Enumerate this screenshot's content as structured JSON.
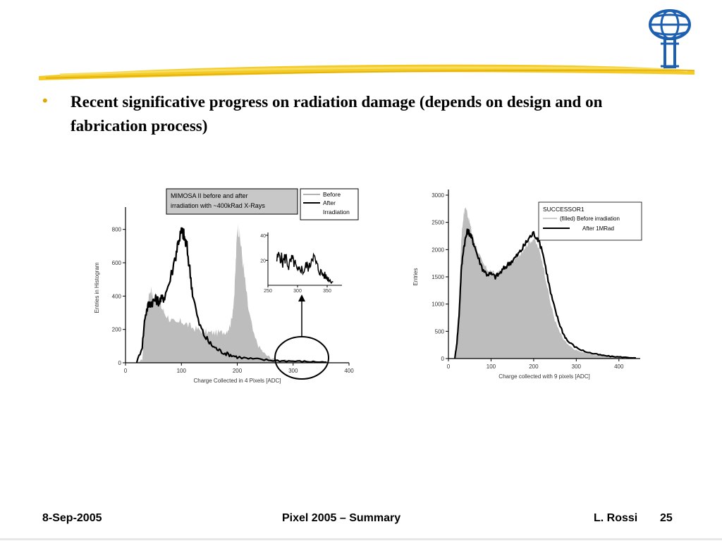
{
  "slide": {
    "bullet": "Recent significative progress on radiation damage (depends on design and on fabrication process)",
    "bullet_color": "#e0a800",
    "accent_color": "#f2c200"
  },
  "footer": {
    "date": "8-Sep-2005",
    "title": "Pixel 2005 – Summary",
    "author": "L. Rossi",
    "page": "25"
  },
  "chart_data": [
    {
      "type": "area",
      "title": "MIMOSA II before and after irradiation with ~400kRad X-Rays",
      "xlabel": "Charge Collected in 4 Pixels [ADC]",
      "ylabel": "Entries in Histogram",
      "xlim": [
        0,
        400
      ],
      "ylim": [
        0,
        900
      ],
      "xticks": [
        "0",
        "100",
        "200",
        "300",
        "400"
      ],
      "yticks": [
        "0",
        "200",
        "400",
        "600",
        "800"
      ],
      "legend": [
        "Before",
        "After Irradiation"
      ],
      "legend_position": "top-right",
      "series": [
        {
          "name": "Before",
          "style": "filled",
          "color": "#bdbdbd",
          "x": [
            20,
            30,
            35,
            40,
            45,
            50,
            55,
            60,
            65,
            70,
            80,
            90,
            100,
            110,
            120,
            130,
            140,
            150,
            160,
            170,
            180,
            185,
            190,
            195,
            198,
            200,
            203,
            206,
            210,
            215,
            220,
            230,
            240,
            250,
            260,
            270,
            280,
            300,
            320,
            340,
            360
          ],
          "y": [
            0,
            20,
            250,
            380,
            450,
            380,
            420,
            360,
            330,
            300,
            260,
            230,
            250,
            230,
            210,
            200,
            190,
            180,
            180,
            180,
            190,
            210,
            260,
            420,
            650,
            820,
            790,
            720,
            600,
            460,
            320,
            160,
            90,
            50,
            30,
            20,
            15,
            10,
            8,
            5,
            3
          ]
        },
        {
          "name": "After Irradiation",
          "style": "line",
          "color": "#000000",
          "x": [
            20,
            30,
            35,
            40,
            45,
            50,
            55,
            60,
            65,
            70,
            80,
            90,
            95,
            100,
            103,
            106,
            110,
            115,
            120,
            130,
            140,
            150,
            160,
            170,
            180,
            190,
            200,
            220,
            240,
            260,
            280,
            300,
            320,
            340,
            360
          ],
          "y": [
            0,
            100,
            280,
            340,
            360,
            370,
            380,
            370,
            380,
            400,
            500,
            650,
            740,
            780,
            780,
            740,
            690,
            560,
            420,
            250,
            170,
            120,
            90,
            70,
            55,
            45,
            35,
            25,
            20,
            15,
            12,
            10,
            8,
            6,
            4
          ]
        }
      ],
      "inset": {
        "xlim": [
          250,
          375
        ],
        "ylim": [
          0,
          40
        ],
        "xticks": [
          "250",
          "300",
          "350"
        ],
        "yticks": [
          "20",
          "40"
        ],
        "x": [
          265,
          270,
          275,
          280,
          285,
          290,
          295,
          300,
          305,
          310,
          315,
          320,
          325,
          330,
          335,
          340,
          345,
          350,
          355,
          360
        ],
        "y": [
          20,
          25,
          18,
          23,
          15,
          20,
          18,
          10,
          14,
          11,
          16,
          14,
          25,
          19,
          13,
          10,
          8,
          6,
          4,
          3
        ]
      }
    },
    {
      "type": "area",
      "title": "SUCCESSOR1",
      "xlabel": "Charge collected with 9 pixels [ADC]",
      "ylabel": "Entries",
      "xlim": [
        0,
        450
      ],
      "ylim": [
        0,
        3000
      ],
      "xticks": [
        "0",
        "100",
        "200",
        "300",
        "400"
      ],
      "yticks": [
        "0",
        "500",
        "1000",
        "1500",
        "2000",
        "2500",
        "3000"
      ],
      "legend": [
        "(filled)  Before irradiation",
        "After 1MRad"
      ],
      "legend_position": "top-right",
      "series": [
        {
          "name": "Before irradiation",
          "style": "filled",
          "color": "#bdbdbd",
          "x": [
            15,
            20,
            25,
            30,
            35,
            40,
            45,
            50,
            55,
            60,
            70,
            80,
            90,
            100,
            110,
            120,
            130,
            140,
            150,
            160,
            170,
            180,
            190,
            200,
            210,
            220,
            230,
            240,
            250,
            260,
            270,
            280,
            300,
            320,
            340,
            360,
            380,
            400,
            420,
            440
          ],
          "y": [
            0,
            400,
            1000,
            2200,
            2600,
            2800,
            2650,
            2500,
            2300,
            2200,
            1950,
            1750,
            1650,
            1600,
            1550,
            1600,
            1650,
            1700,
            1780,
            1850,
            1950,
            2050,
            2150,
            2200,
            2050,
            1800,
            1400,
            1000,
            700,
            500,
            350,
            250,
            150,
            100,
            70,
            50,
            30,
            20,
            10,
            5
          ]
        },
        {
          "name": "After 1MRad",
          "style": "line",
          "color": "#000000",
          "x": [
            15,
            20,
            25,
            30,
            35,
            40,
            45,
            50,
            55,
            60,
            70,
            80,
            90,
            100,
            110,
            120,
            130,
            140,
            150,
            160,
            170,
            180,
            190,
            200,
            210,
            220,
            230,
            240,
            250,
            260,
            270,
            280,
            300,
            320,
            340,
            360,
            380,
            400,
            420,
            440
          ],
          "y": [
            0,
            300,
            800,
            1600,
            2000,
            2200,
            2350,
            2300,
            2200,
            2100,
            1850,
            1650,
            1550,
            1550,
            1500,
            1560,
            1650,
            1730,
            1800,
            1880,
            1980,
            2100,
            2220,
            2300,
            2200,
            2000,
            1600,
            1200,
            900,
            650,
            450,
            320,
            200,
            130,
            90,
            60,
            40,
            30,
            20,
            10
          ]
        }
      ]
    }
  ]
}
